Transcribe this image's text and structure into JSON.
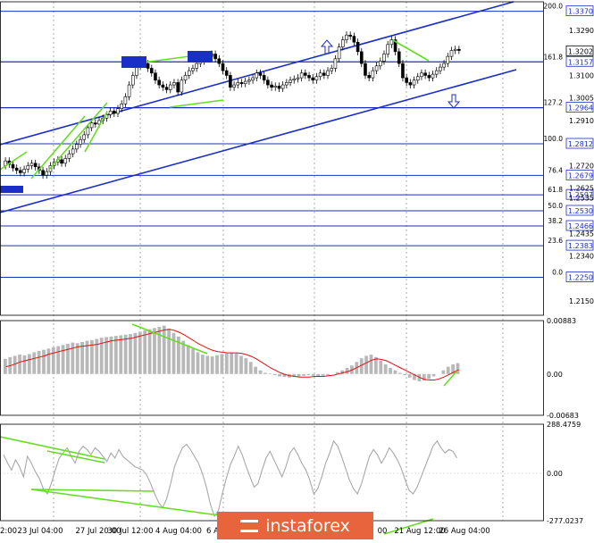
{
  "chart_data": [
    {
      "type": "candlestick",
      "pane": "price",
      "x_ticks": [
        "2:00",
        "23 Jul 04:00",
        "27 Jul 20:00",
        "30 Jul 12:00",
        "4 Aug 04:00",
        "6 A",
        "21 Aug 12:00",
        "26 Aug 04:00"
      ],
      "x_tick_partial": [
        "00"
      ],
      "y_ticks": [
        1.329,
        1.31,
        1.3005,
        1.291,
        1.272,
        1.2625,
        1.2435,
        1.234,
        1.215
      ],
      "y_ticks_extra": [
        "1.2535"
      ],
      "ylim": [
        1.209,
        1.341
      ],
      "current_price": 1.3202,
      "fibo_levels": [
        {
          "label": "200.0",
          "value": 1.337
        },
        {
          "label": "161.8",
          "value": 1.3157
        },
        {
          "label": "127.2",
          "value": 1.2964
        },
        {
          "label": "100.0",
          "value": 1.2812
        },
        {
          "label": "76.4",
          "value": 1.2679
        },
        {
          "label": "61.8",
          "value": 1.2597
        },
        {
          "label": "50.0",
          "value": 1.253
        },
        {
          "label": "38.2",
          "value": 1.2466
        },
        {
          "label": "23.6",
          "value": 1.2383
        },
        {
          "label": "0.0",
          "value": 1.225
        }
      ],
      "closes": [
        1.274,
        1.2725,
        1.271,
        1.27,
        1.269,
        1.2705,
        1.272,
        1.273,
        1.2715,
        1.27,
        1.268,
        1.2695,
        1.272,
        1.2735,
        1.2745,
        1.273,
        1.275,
        1.277,
        1.279,
        1.281,
        1.283,
        1.285,
        1.288,
        1.29,
        1.2895,
        1.291,
        1.292,
        1.2935,
        1.295,
        1.294,
        1.296,
        1.298,
        1.301,
        1.306,
        1.31,
        1.314,
        1.316,
        1.315,
        1.313,
        1.311,
        1.308,
        1.306,
        1.305,
        1.304,
        1.306,
        1.307,
        1.303,
        1.308,
        1.31,
        1.312,
        1.313,
        1.315,
        1.316,
        1.317,
        1.318,
        1.319,
        1.317,
        1.315,
        1.312,
        1.31,
        1.305,
        1.306,
        1.307,
        1.3065,
        1.3075,
        1.308,
        1.309,
        1.311,
        1.31,
        1.308,
        1.306,
        1.305,
        1.3055,
        1.3045,
        1.306,
        1.307,
        1.308,
        1.3085,
        1.309,
        1.311,
        1.31,
        1.309,
        1.308,
        1.3095,
        1.311,
        1.31,
        1.312,
        1.313,
        1.317,
        1.322,
        1.325,
        1.327,
        1.3265,
        1.324,
        1.32,
        1.315,
        1.31,
        1.309,
        1.312,
        1.314,
        1.316,
        1.319,
        1.323,
        1.325,
        1.32,
        1.315,
        1.309,
        1.307,
        1.306,
        1.308,
        1.3095,
        1.311,
        1.31,
        1.309,
        1.3105,
        1.312,
        1.3135,
        1.315,
        1.318,
        1.3205,
        1.321,
        1.3205
      ],
      "annotations": [
        "up arrow above upper channel",
        "down arrow below lower channel",
        "two blue rectangles at resistance"
      ]
    },
    {
      "type": "histogram",
      "pane": "macd",
      "y_ticks": [
        "0.00883",
        "0.00",
        "-0.00683"
      ],
      "ylim": [
        -0.00683,
        0.00883
      ],
      "histogram": [
        0.0025,
        0.0028,
        0.003,
        0.0032,
        0.0031,
        0.0033,
        0.0036,
        0.0038,
        0.004,
        0.0042,
        0.0044,
        0.0046,
        0.0048,
        0.005,
        0.0052,
        0.0051,
        0.0053,
        0.0055,
        0.0056,
        0.0058,
        0.006,
        0.0061,
        0.0062,
        0.0063,
        0.0064,
        0.0065,
        0.0066,
        0.0068,
        0.007,
        0.0072,
        0.0074,
        0.0076,
        0.0078,
        0.008,
        0.0075,
        0.0068,
        0.0062,
        0.0055,
        0.0048,
        0.0042,
        0.0036,
        0.0032,
        0.003,
        0.0029,
        0.0031,
        0.0033,
        0.0034,
        0.0035,
        0.0034,
        0.003,
        0.0026,
        0.002,
        0.0012,
        0.0006,
        0.0002,
        0.0001,
        -0.0002,
        -0.0004,
        -0.0005,
        -0.0006,
        -0.0005,
        -0.0004,
        -0.0003,
        -0.0002,
        -0.0003,
        -0.0004,
        -0.0003,
        -0.0002,
        0.0,
        0.0003,
        0.0006,
        0.001,
        0.0014,
        0.002,
        0.0026,
        0.003,
        0.0032,
        0.0028,
        0.0022,
        0.0016,
        0.001,
        0.0006,
        0.0002,
        -0.0002,
        -0.0006,
        -0.001,
        -0.0012,
        -0.0011,
        -0.0008,
        -0.0004,
        0.0,
        0.0006,
        0.0012,
        0.0016,
        0.0018
      ],
      "signal": [
        0.0012,
        0.0014,
        0.0017,
        0.002,
        0.0022,
        0.0024,
        0.0026,
        0.0028,
        0.003,
        0.0033,
        0.0035,
        0.0037,
        0.0039,
        0.0041,
        0.0043,
        0.0045,
        0.0046,
        0.0047,
        0.0048,
        0.0049,
        0.0051,
        0.0053,
        0.0055,
        0.0056,
        0.0057,
        0.0058,
        0.0059,
        0.0061,
        0.0063,
        0.0065,
        0.0067,
        0.0069,
        0.0071,
        0.0073,
        0.0074,
        0.0072,
        0.0069,
        0.0065,
        0.006,
        0.0055,
        0.005,
        0.0046,
        0.0042,
        0.0039,
        0.0037,
        0.0036,
        0.0035,
        0.0035,
        0.0035,
        0.0034,
        0.0032,
        0.0029,
        0.0025,
        0.002,
        0.0015,
        0.001,
        0.0006,
        0.0002,
        -0.0001,
        -0.0003,
        -0.0004,
        -0.0005,
        -0.0005,
        -0.0005,
        -0.0004,
        -0.0004,
        -0.0004,
        -0.0003,
        -0.0002,
        0.0,
        0.0002,
        0.0004,
        0.0007,
        0.0011,
        0.0015,
        0.0019,
        0.0023,
        0.0025,
        0.0024,
        0.0022,
        0.0018,
        0.0014,
        0.001,
        0.0006,
        0.0002,
        -0.0002,
        -0.0006,
        -0.0009,
        -0.001,
        -0.001,
        -0.0008,
        -0.0005,
        -0.0001,
        0.0003,
        0.0007
      ]
    },
    {
      "type": "line",
      "pane": "cci",
      "y_ticks": [
        "288.4759",
        "0.00",
        "-277.0237"
      ],
      "ylim": [
        -277.0237,
        288.4759
      ],
      "values": [
        110,
        60,
        20,
        80,
        40,
        -20,
        100,
        60,
        10,
        -30,
        -90,
        -120,
        -60,
        20,
        90,
        120,
        150,
        100,
        60,
        130,
        160,
        140,
        110,
        150,
        130,
        100,
        70,
        120,
        90,
        140,
        100,
        80,
        60,
        40,
        30,
        20,
        -10,
        -60,
        -120,
        -170,
        -200,
        -150,
        -60,
        40,
        100,
        150,
        170,
        140,
        100,
        60,
        0,
        -80,
        -180,
        -250,
        -220,
        -120,
        -30,
        50,
        100,
        160,
        110,
        40,
        -20,
        -80,
        -60,
        20,
        90,
        130,
        80,
        30,
        -20,
        40,
        120,
        150,
        110,
        60,
        20,
        -40,
        -120,
        -90,
        -20,
        60,
        120,
        190,
        160,
        100,
        30,
        -40,
        -90,
        -120,
        -60,
        20,
        100,
        140,
        110,
        60,
        100,
        150,
        120,
        80,
        30,
        -40,
        -100,
        -120,
        -80,
        -20,
        40,
        100,
        160,
        190,
        150,
        120,
        140,
        130,
        90
      ]
    }
  ],
  "watermark": {
    "brand": "instaforex"
  },
  "colors": {
    "channel": "#1c2ec8",
    "divergence": "#66dd22",
    "macd_signal": "#e01010",
    "histogram": "#b8b8b8",
    "cci": "#a8a8a8",
    "level_line": "#1c2ec8"
  }
}
